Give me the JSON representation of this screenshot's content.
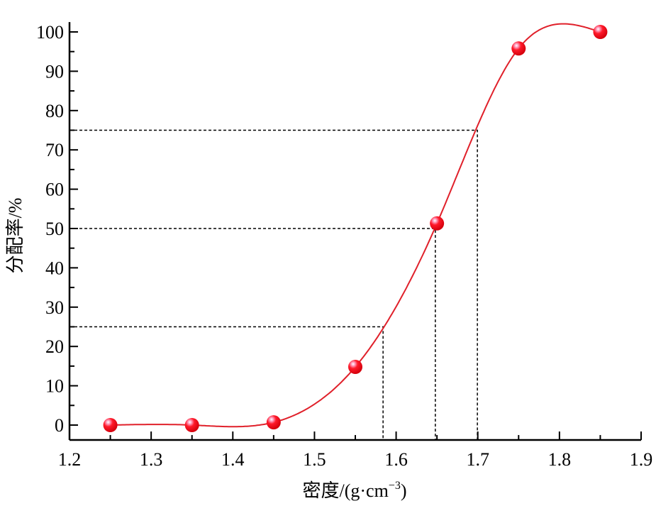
{
  "chart_data": {
    "type": "line",
    "title": "",
    "xlabel": "密度/(g·cm",
    "xlabel_sup": "−3",
    "xlabel_end": ")",
    "ylabel": "分配率/%",
    "xlim": [
      1.2,
      1.9
    ],
    "ylim": [
      -3.8,
      102.5
    ],
    "xticks": [
      1.2,
      1.3,
      1.4,
      1.5,
      1.6,
      1.7,
      1.8,
      1.9
    ],
    "xtick_labels": [
      "1.2",
      "1.3",
      "1.4",
      "1.5",
      "1.6",
      "1.7",
      "1.8",
      "1.9"
    ],
    "yticks": [
      0,
      10,
      20,
      30,
      40,
      50,
      60,
      70,
      80,
      90,
      100
    ],
    "ytick_labels": [
      "0",
      "10",
      "20",
      "30",
      "40",
      "50",
      "60",
      "70",
      "80",
      "90",
      "100"
    ],
    "grid": false,
    "series": [
      {
        "name": "分配率",
        "x": [
          1.25,
          1.35,
          1.45,
          1.55,
          1.65,
          1.75,
          1.85
        ],
        "y": [
          0,
          0,
          0.7,
          14.8,
          51.3,
          95.8,
          100
        ],
        "color": "#e0202a",
        "smooth": "spline"
      }
    ],
    "reference_lines": [
      {
        "y": 25,
        "x": 1.584
      },
      {
        "y": 50,
        "x": 1.648
      },
      {
        "y": 75,
        "x": 1.6995
      }
    ]
  }
}
